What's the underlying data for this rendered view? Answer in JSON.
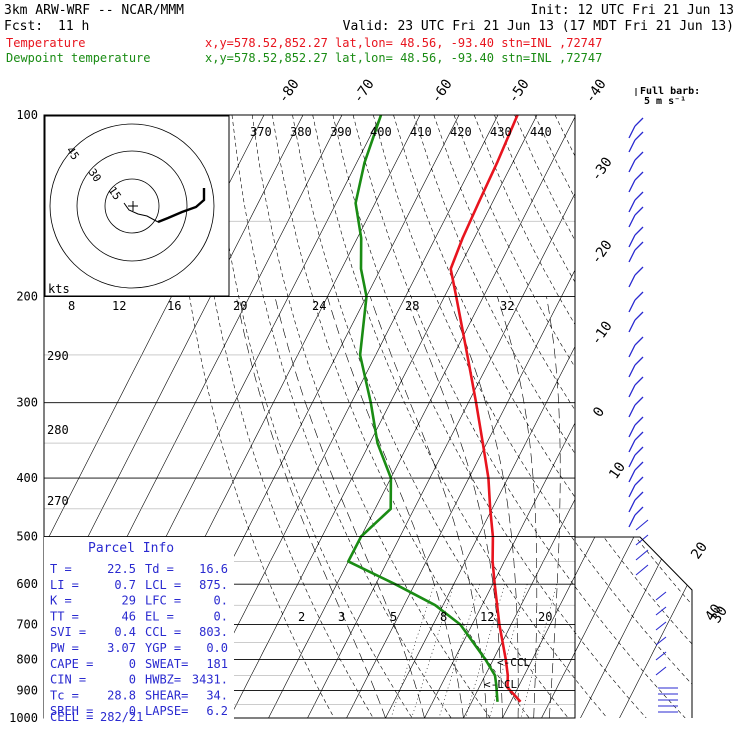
{
  "header": {
    "model": "3km ARW-WRF -- NCAR/MMM",
    "init": "Init: 12 UTC Fri 21 Jun 13",
    "fcst_label": "Fcst:",
    "fcst_value": "11 h",
    "valid": "Valid: 23 UTC Fri 21 Jun 13 (17 MDT Fri 21 Jun 13)",
    "temp_label": "Temperature",
    "dew_label": "Dewpoint temperature",
    "temp_info": "x,y=578.52,852.27   lat,lon= 48.56, -93.40   stn=INL ,72747",
    "dew_info": "x,y=578.52,852.27   lat,lon= 48.56, -93.40   stn=INL ,72747",
    "colors": {
      "temperature": "#e8141e",
      "dewpoint": "#1a8c14",
      "wind": "#2a2ad0"
    }
  },
  "barb_legend": {
    "line1": "Full barb:",
    "line2": "5 m s⁻¹"
  },
  "hodograph": {
    "units": "kts",
    "rings": [
      "15",
      "30",
      "45"
    ]
  },
  "parcel": {
    "title": "Parcel Info",
    "rows": [
      {
        "l": "T  =",
        "lv": "22.5",
        "r": "Td =",
        "rv": "16.6"
      },
      {
        "l": "LI =",
        "lv": "0.7",
        "r": "LCL =",
        "rv": "875."
      },
      {
        "l": "K  =",
        "lv": "29",
        "r": "LFC =",
        "rv": "0."
      },
      {
        "l": "TT =",
        "lv": "46",
        "r": "EL  =",
        "rv": "0."
      },
      {
        "l": "SVI =",
        "lv": "0.4",
        "r": "CCL =",
        "rv": "803."
      },
      {
        "l": "PW =",
        "lv": "3.07",
        "r": "YGP =",
        "rv": "0.0"
      },
      {
        "l": "CAPE =",
        "lv": "0",
        "r": "SWEAT=",
        "rv": "181"
      },
      {
        "l": "CIN =",
        "lv": "0",
        "r": "HWBZ=",
        "rv": "3431."
      },
      {
        "l": "Tc =",
        "lv": "28.8",
        "r": "SHEAR=",
        "rv": "34."
      },
      {
        "l": "SREH =",
        "lv": "0",
        "r": "LAPSE=",
        "rv": "6.2"
      }
    ],
    "cell_label": "CELL =",
    "cell_value": "282/21"
  },
  "annotations": {
    "ccl": "<-CCL",
    "lcl": "<-LCL"
  },
  "chart_data": {
    "type": "line",
    "title": "",
    "xlabel": "",
    "ylabel": "",
    "pressure_ticks": [
      "100",
      "200",
      "300",
      "400",
      "500",
      "600",
      "700",
      "800",
      "900",
      "1000"
    ],
    "isotherm_labels_top": [
      "-80",
      "-70",
      "-60",
      "-50",
      "-40"
    ],
    "isotherm_labels_right": [
      "-30",
      "-20",
      "-10",
      "0",
      "10",
      "20",
      "30",
      "40"
    ],
    "theta_e_labels": [
      "370",
      "380",
      "390",
      "400",
      "410",
      "420",
      "430",
      "440"
    ],
    "theta_e_left_labels": [
      "290",
      "280",
      "270"
    ],
    "mixing_ratio_upper_labels": [
      "8",
      "12",
      "16",
      "20",
      "24",
      "28",
      "32"
    ],
    "mixing_ratio_lower_labels": [
      "2",
      "3",
      "5",
      "8",
      "12",
      "20"
    ],
    "series": [
      {
        "name": "Temperature",
        "color": "#e8141e",
        "points": [
          {
            "p": 940,
            "t": 22.5
          },
          {
            "p": 910,
            "t": 19.4
          },
          {
            "p": 890,
            "t": 17.3
          },
          {
            "p": 850,
            "t": 15.8
          },
          {
            "p": 800,
            "t": 13.2
          },
          {
            "p": 700,
            "t": 7.0
          },
          {
            "p": 600,
            "t": 0.5
          },
          {
            "p": 550,
            "t": -3.0
          },
          {
            "p": 500,
            "t": -6.2
          },
          {
            "p": 450,
            "t": -10.5
          },
          {
            "p": 400,
            "t": -15.0
          },
          {
            "p": 350,
            "t": -21.0
          },
          {
            "p": 300,
            "t": -28.0
          },
          {
            "p": 250,
            "t": -36.5
          },
          {
            "p": 200,
            "t": -47.0
          },
          {
            "p": 180,
            "t": -52.0
          },
          {
            "p": 160,
            "t": -53.0
          },
          {
            "p": 140,
            "t": -53.5
          },
          {
            "p": 120,
            "t": -54.0
          },
          {
            "p": 100,
            "t": -55.0
          }
        ]
      },
      {
        "name": "Dewpoint temperature",
        "color": "#1a8c14",
        "points": [
          {
            "p": 940,
            "t": 16.6
          },
          {
            "p": 880,
            "t": 14.0
          },
          {
            "p": 850,
            "t": 12.5
          },
          {
            "p": 800,
            "t": 8.0
          },
          {
            "p": 700,
            "t": -3.0
          },
          {
            "p": 650,
            "t": -12.0
          },
          {
            "p": 600,
            "t": -25.0
          },
          {
            "p": 550,
            "t": -40.0
          },
          {
            "p": 500,
            "t": -40.0
          },
          {
            "p": 450,
            "t": -36.0
          },
          {
            "p": 400,
            "t": -40.0
          },
          {
            "p": 350,
            "t": -48.0
          },
          {
            "p": 300,
            "t": -55.0
          },
          {
            "p": 250,
            "t": -64.0
          },
          {
            "p": 200,
            "t": -70.0
          },
          {
            "p": 180,
            "t": -75.0
          },
          {
            "p": 160,
            "t": -79.0
          },
          {
            "p": 140,
            "t": -85.0
          },
          {
            "p": 120,
            "t": -88.0
          },
          {
            "p": 100,
            "t": -90.0
          }
        ]
      }
    ]
  }
}
